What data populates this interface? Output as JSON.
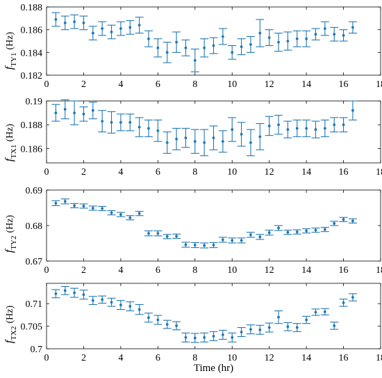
{
  "figure": {
    "xlabel": "Time (hr)",
    "xticks": [
      0,
      2,
      4,
      6,
      8,
      10,
      12,
      14,
      16,
      18
    ],
    "marker_color": "#1f77b4"
  },
  "chart_data": [
    {
      "type": "scatter",
      "ylabel": {
        "symbol": "f",
        "subscript": "TY1",
        "unit": "(Hz)"
      },
      "xlim": [
        0,
        18
      ],
      "ylim": [
        0.182,
        0.188
      ],
      "yticks": [
        "0.182",
        "0.184",
        "0.186",
        "0.188"
      ],
      "grid": false,
      "series": [
        {
          "x": [
            0.5,
            1,
            1.5,
            2,
            2.5,
            3,
            3.5,
            4,
            4.5,
            5,
            5.5,
            6,
            6.5,
            7,
            7.5,
            8,
            8.5,
            9,
            9.5,
            10,
            10.5,
            11,
            11.5,
            12,
            12.5,
            13,
            13.5,
            14,
            14.5,
            15,
            15.5,
            16,
            16.5
          ],
          "y": [
            0.1869,
            0.1866,
            0.1867,
            0.1866,
            0.1857,
            0.1861,
            0.1858,
            0.1861,
            0.1862,
            0.1864,
            0.1852,
            0.1844,
            0.184,
            0.1849,
            0.1844,
            0.1833,
            0.1844,
            0.1846,
            0.1854,
            0.184,
            0.1845,
            0.1847,
            0.1857,
            0.1853,
            0.1849,
            0.185,
            0.1852,
            0.1852,
            0.1856,
            0.1861,
            0.1856,
            0.1855,
            0.1862
          ],
          "err": [
            0.0006,
            0.0006,
            0.0006,
            0.0006,
            0.0006,
            0.0006,
            0.0006,
            0.0006,
            0.0006,
            0.0007,
            0.0007,
            0.0008,
            0.0009,
            0.0009,
            0.0007,
            0.001,
            0.0008,
            0.0007,
            0.0007,
            0.0006,
            0.0007,
            0.0007,
            0.0012,
            0.0007,
            0.0008,
            0.0008,
            0.0007,
            0.0007,
            0.0005,
            0.0006,
            0.0006,
            0.0005,
            0.0005
          ]
        }
      ]
    },
    {
      "type": "scatter",
      "ylabel": {
        "symbol": "f",
        "subscript": "TX1",
        "unit": "(Hz)"
      },
      "xlim": [
        0,
        18
      ],
      "ylim": [
        0.1848,
        0.19
      ],
      "yticks": [
        "0.186",
        "0.188",
        "0.19"
      ],
      "grid": false,
      "series": [
        {
          "x": [
            0.5,
            1,
            1.5,
            2,
            2.5,
            3,
            3.5,
            4,
            4.5,
            5,
            5.5,
            6,
            6.5,
            7,
            7.5,
            8,
            8.5,
            9,
            9.5,
            10,
            10.5,
            11,
            11.5,
            12,
            12.5,
            13,
            13.5,
            14,
            14.5,
            15,
            15.5,
            16,
            16.5
          ],
          "y": [
            0.189,
            0.1893,
            0.189,
            0.1889,
            0.1892,
            0.1883,
            0.1882,
            0.1882,
            0.1882,
            0.1878,
            0.1877,
            0.1875,
            0.1865,
            0.1868,
            0.1869,
            0.1866,
            0.1865,
            0.1869,
            0.1866,
            0.1876,
            0.1872,
            0.1865,
            0.187,
            0.1879,
            0.188,
            0.1876,
            0.1877,
            0.1877,
            0.1876,
            0.1877,
            0.188,
            0.188,
            0.1892
          ],
          "err": [
            0.0007,
            0.0008,
            0.001,
            0.0006,
            0.0007,
            0.0009,
            0.0009,
            0.0007,
            0.0007,
            0.0008,
            0.0007,
            0.0009,
            0.0009,
            0.0009,
            0.0008,
            0.001,
            0.0011,
            0.001,
            0.0009,
            0.001,
            0.001,
            0.0011,
            0.0011,
            0.0008,
            0.0008,
            0.0007,
            0.0007,
            0.0007,
            0.0007,
            0.0007,
            0.0006,
            0.0006,
            0.0008
          ]
        }
      ]
    },
    {
      "type": "scatter",
      "ylabel": {
        "symbol": "f",
        "subscript": "TY2",
        "unit": "(Hz)"
      },
      "xlim": [
        0,
        18
      ],
      "ylim": [
        0.67,
        0.69
      ],
      "yticks": [
        "0.67",
        "0.68",
        "0.69"
      ],
      "grid": false,
      "series": [
        {
          "x": [
            0.5,
            1,
            1.5,
            2,
            2.5,
            3,
            3.5,
            4,
            4.5,
            5,
            5.5,
            6,
            6.5,
            7,
            7.5,
            8,
            8.5,
            9,
            9.5,
            10,
            10.5,
            11,
            11.5,
            12,
            12.5,
            13,
            13.5,
            14,
            14.5,
            15,
            15.5,
            16,
            16.5
          ],
          "y": [
            0.6863,
            0.6868,
            0.6856,
            0.6855,
            0.6849,
            0.6848,
            0.6836,
            0.6831,
            0.6822,
            0.6834,
            0.6778,
            0.6778,
            0.6769,
            0.677,
            0.6746,
            0.6745,
            0.6744,
            0.6745,
            0.676,
            0.6758,
            0.6758,
            0.6774,
            0.6768,
            0.678,
            0.6793,
            0.6781,
            0.6782,
            0.6785,
            0.6787,
            0.6789,
            0.6806,
            0.6817,
            0.6813
          ],
          "err": [
            0.0007,
            0.0007,
            0.0006,
            0.0006,
            0.0006,
            0.0006,
            0.0006,
            0.0006,
            0.0006,
            0.0006,
            0.0007,
            0.0007,
            0.0006,
            0.0006,
            0.0007,
            0.0007,
            0.0007,
            0.0007,
            0.0007,
            0.0007,
            0.0007,
            0.0007,
            0.0007,
            0.0007,
            0.0007,
            0.0006,
            0.0006,
            0.0006,
            0.0006,
            0.0006,
            0.0006,
            0.0006,
            0.0006
          ]
        }
      ]
    },
    {
      "type": "scatter",
      "ylabel": {
        "symbol": "f",
        "subscript": "TX2",
        "unit": "(Hz)"
      },
      "xlim": [
        0,
        18
      ],
      "ylim": [
        0.7,
        0.7145
      ],
      "yticks": [
        "0.7",
        "0.705",
        "0.71"
      ],
      "grid": false,
      "series": [
        {
          "x": [
            0.5,
            1,
            1.5,
            2,
            2.5,
            3,
            3.5,
            4,
            4.5,
            5,
            5.5,
            6,
            6.5,
            7,
            7.5,
            8,
            8.5,
            9,
            9.5,
            10,
            10.5,
            11,
            11.5,
            12,
            12.5,
            13,
            13.5,
            14,
            14.5,
            15,
            15.5,
            16,
            16.5
          ],
          "y": [
            0.7122,
            0.7129,
            0.7124,
            0.712,
            0.7107,
            0.7109,
            0.7103,
            0.7097,
            0.7094,
            0.7087,
            0.7069,
            0.7064,
            0.7054,
            0.7051,
            0.7025,
            0.7024,
            0.7025,
            0.7028,
            0.7031,
            0.7025,
            0.7037,
            0.7043,
            0.7042,
            0.7047,
            0.707,
            0.7049,
            0.7047,
            0.7064,
            0.7081,
            0.7082,
            0.7051,
            0.7102,
            0.7114
          ],
          "err": [
            0.0009,
            0.0009,
            0.001,
            0.001,
            0.0009,
            0.0008,
            0.0009,
            0.001,
            0.001,
            0.0011,
            0.001,
            0.001,
            0.0009,
            0.0009,
            0.001,
            0.001,
            0.001,
            0.001,
            0.001,
            0.001,
            0.001,
            0.001,
            0.001,
            0.001,
            0.0014,
            0.0009,
            0.0009,
            0.0008,
            0.0007,
            0.0007,
            0.0008,
            0.0008,
            0.0008
          ]
        }
      ]
    }
  ]
}
